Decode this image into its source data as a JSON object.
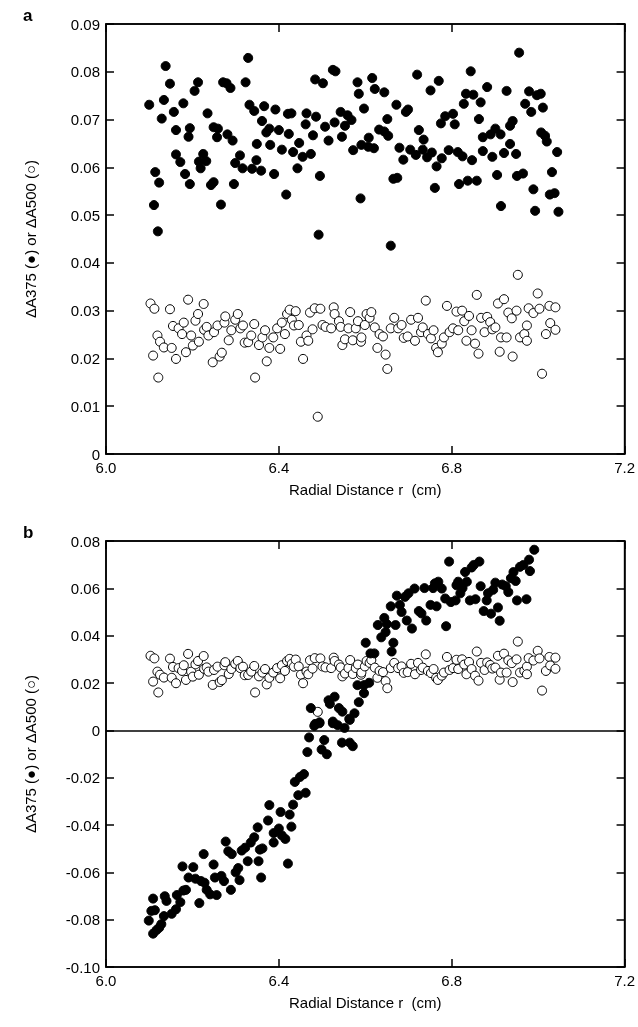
{
  "chart_data": [
    {
      "type": "scatter",
      "title": "a",
      "xlabel": "Radial Distance r  (cm)",
      "ylabel": "ΔA375 (●) or ΔA500 (○)",
      "marker": "circle",
      "xlim": [
        6.0,
        7.2
      ],
      "xticks": [
        {
          "value": 6,
          "label": "6.0"
        },
        6.4,
        6.8,
        7.2
      ],
      "ylim": [
        0,
        0.09
      ],
      "yticks": [
        0,
        0.01,
        0.02,
        0.03,
        0.04,
        0.05,
        0.06,
        0.07,
        0.08,
        0.09
      ],
      "series": [
        {
          "color": "#000000",
          "x": [
            6.1,
            6.111,
            6.114,
            6.123,
            6.129,
            6.134,
            6.138,
            6.148,
            6.157,
            6.162,
            6.162,
            6.172,
            6.179,
            6.183,
            6.194,
            6.191,
            6.194,
            6.205,
            6.213,
            6.215,
            6.219,
            6.225,
            6.232,
            6.235,
            6.243,
            6.249,
            6.249,
            6.257,
            6.259,
            6.266,
            6.271,
            6.279,
            6.281,
            6.288,
            6.293,
            6.296,
            6.299,
            6.31,
            6.316,
            6.323,
            6.329,
            6.332,
            6.338,
            6.343,
            6.348,
            6.349,
            6.359,
            6.361,
            6.366,
            6.371,
            6.38,
            6.378,
            6.389,
            6.392,
            6.4,
            6.407,
            6.417,
            6.421,
            6.423,
            6.429,
            6.433,
            6.443,
            6.447,
            6.455,
            6.464,
            6.462,
            6.474,
            6.479,
            6.484,
            6.486,
            6.495,
            6.502,
            6.507,
            6.515,
            6.525,
            6.531,
            6.529,
            6.543,
            6.546,
            6.553,
            6.559,
            6.568,
            6.572,
            6.582,
            6.585,
            6.589,
            6.597,
            6.591,
            6.608,
            6.607,
            6.616,
            6.62,
            6.622,
            6.632,
            6.644,
            6.644,
            6.651,
            6.653,
            6.665,
            6.672,
            6.674,
            6.679,
            6.688,
            6.694,
            6.699,
            6.704,
            6.717,
            6.72,
            6.724,
            6.735,
            6.733,
            6.743,
            6.754,
            6.751,
            6.761,
            6.765,
            6.77,
            6.775,
            6.777,
            6.785,
            6.793,
            6.803,
            6.807,
            6.814,
            6.817,
            6.825,
            6.828,
            6.833,
            6.837,
            6.844,
            6.847,
            6.85,
            6.858,
            6.863,
            6.867,
            6.872,
            6.872,
            6.882,
            6.89,
            6.894,
            6.901,
            6.905,
            6.913,
            6.914,
            6.921,
            6.927,
            6.935,
            6.935,
            6.941,
            6.949,
            6.951,
            6.956,
            6.965,
            6.97,
            6.979,
            6.984,
            6.989,
            6.993,
            6.997,
            7.006,
            7.007,
            7.011,
            7.016,
            7.02,
            7.027,
            7.032,
            7.038,
            7.044,
            7.047,
            6.12,
            6.492,
            6.659
          ],
          "values": [
            0.0731,
            0.0521,
            0.059,
            0.0568,
            0.0702,
            0.0741,
            0.0812,
            0.0775,
            0.0716,
            0.0678,
            0.0627,
            0.0611,
            0.0734,
            0.0586,
            0.0682,
            0.0664,
            0.0565,
            0.076,
            0.0778,
            0.0612,
            0.0598,
            0.0628,
            0.0613,
            0.0713,
            0.0563,
            0.0569,
            0.0684,
            0.0663,
            0.0681,
            0.0522,
            0.0778,
            0.0776,
            0.0669,
            0.0766,
            0.0656,
            0.0565,
            0.0609,
            0.0625,
            0.0598,
            0.0778,
            0.0829,
            0.0731,
            0.0597,
            0.0718,
            0.0615,
            0.0649,
            0.0593,
            0.0697,
            0.0728,
            0.0673,
            0.0647,
            0.0681,
            0.0586,
            0.0721,
            0.0678,
            0.0637,
            0.0543,
            0.0712,
            0.067,
            0.0713,
            0.0632,
            0.0598,
            0.0651,
            0.0622,
            0.0713,
            0.069,
            0.0628,
            0.0667,
            0.0784,
            0.0706,
            0.0582,
            0.0776,
            0.0685,
            0.0656,
            0.0804,
            0.0801,
            0.0694,
            0.0716,
            0.0664,
            0.0687,
            0.0709,
            0.0699,
            0.0636,
            0.0778,
            0.0754,
            0.0535,
            0.0723,
            0.0647,
            0.0662,
            0.0643,
            0.0787,
            0.064,
            0.0764,
            0.0679,
            0.0757,
            0.0675,
            0.0701,
            0.0666,
            0.0576,
            0.0731,
            0.0578,
            0.0641,
            0.0616,
            0.0716,
            0.0721,
            0.0637,
            0.0626,
            0.0794,
            0.0678,
            0.0658,
            0.0637,
            0.0621,
            0.0631,
            0.0761,
            0.0557,
            0.0602,
            0.0781,
            0.0692,
            0.0619,
            0.0707,
            0.0636,
            0.0712,
            0.069,
            0.0632,
            0.0565,
            0.0623,
            0.0733,
            0.0754,
            0.0572,
            0.0801,
            0.0615,
            0.0752,
            0.0572,
            0.0701,
            0.0736,
            0.0663,
            0.0634,
            0.0768,
            0.0669,
            0.0622,
            0.0681,
            0.0584,
            0.0669,
            0.0519,
            0.063,
            0.076,
            0.0687,
            0.0649,
            0.0697,
            0.0628,
            0.0582,
            0.084,
            0.0587,
            0.0733,
            0.0759,
            0.0716,
            0.0554,
            0.0509,
            0.0751,
            0.0754,
            0.0673,
            0.0725,
            0.0666,
            0.0654,
            0.0543,
            0.059,
            0.0546,
            0.0632,
            0.0507,
            0.0466,
            0.0459,
            0.0436
          ]
        },
        {
          "color": "#ffffff",
          "x": [
            6.103,
            6.109,
            6.112,
            6.119,
            6.121,
            6.125,
            6.134,
            6.148,
            6.152,
            6.155,
            6.162,
            6.168,
            6.176,
            6.18,
            6.185,
            6.19,
            6.197,
            6.201,
            6.207,
            6.213,
            6.215,
            6.226,
            6.227,
            6.233,
            6.237,
            6.247,
            6.25,
            6.258,
            6.263,
            6.268,
            6.274,
            6.276,
            6.284,
            6.29,
            6.299,
            6.305,
            6.311,
            6.317,
            6.321,
            6.329,
            6.336,
            6.343,
            6.345,
            6.354,
            6.362,
            6.368,
            6.372,
            6.378,
            6.387,
            6.396,
            6.403,
            6.407,
            6.414,
            6.419,
            6.425,
            6.43,
            6.435,
            6.439,
            6.446,
            6.451,
            6.456,
            6.464,
            6.468,
            6.472,
            6.478,
            6.483,
            6.49,
            6.496,
            6.501,
            6.508,
            6.521,
            6.527,
            6.529,
            6.539,
            6.543,
            6.547,
            6.553,
            6.561,
            6.565,
            6.571,
            6.578,
            6.583,
            6.59,
            6.591,
            6.599,
            6.603,
            6.61,
            6.614,
            6.622,
            6.628,
            6.633,
            6.641,
            6.647,
            6.651,
            6.659,
            6.667,
            6.676,
            6.684,
            6.689,
            6.698,
            6.706,
            6.715,
            6.722,
            6.729,
            6.733,
            6.74,
            6.745,
            6.752,
            6.758,
            6.764,
            6.768,
            6.777,
            6.782,
            6.789,
            6.795,
            6.803,
            6.811,
            6.815,
            6.824,
            6.829,
            6.834,
            6.84,
            6.846,
            6.854,
            6.858,
            6.862,
            6.868,
            6.876,
            6.882,
            6.889,
            6.894,
            6.901,
            6.907,
            6.911,
            6.914,
            6.921,
            6.927,
            6.931,
            6.939,
            6.941,
            6.95,
            6.953,
            6.958,
            6.968,
            6.974,
            6.974,
            6.978,
            6.989,
            6.999,
            7.003,
            7.009,
            7.018,
            7.026,
            7.028,
            7.04,
            7.04
          ],
          "values": [
            0.0315,
            0.0206,
            0.0304,
            0.0248,
            0.016,
            0.0235,
            0.0223,
            0.0303,
            0.0222,
            0.0268,
            0.0199,
            0.0263,
            0.0251,
            0.0275,
            0.0213,
            0.0323,
            0.0248,
            0.0227,
            0.0279,
            0.0293,
            0.0235,
            0.0314,
            0.026,
            0.0266,
            0.0248,
            0.0192,
            0.0255,
            0.0269,
            0.0204,
            0.0212,
            0.0275,
            0.0288,
            0.0238,
            0.0259,
            0.0281,
            0.0293,
            0.0263,
            0.0269,
            0.0233,
            0.0234,
            0.0248,
            0.0272,
            0.016,
            0.0228,
            0.0244,
            0.0259,
            0.0194,
            0.0222,
            0.0244,
            0.0263,
            0.022,
            0.0275,
            0.0251,
            0.0293,
            0.0302,
            0.0281,
            0.0269,
            0.0299,
            0.027,
            0.0235,
            0.0199,
            0.0248,
            0.0237,
            0.0296,
            0.0261,
            0.0305,
            0.0078,
            0.0304,
            0.027,
            0.0266,
            0.0263,
            0.0307,
            0.0293,
            0.0278,
            0.0266,
            0.0228,
            0.024,
            0.0263,
            0.0297,
            0.0238,
            0.0263,
            0.0278,
            0.0235,
            0.0244,
            0.027,
            0.0293,
            0.0285,
            0.0297,
            0.0265,
            0.0222,
            0.0251,
            0.0246,
            0.0208,
            0.0178,
            0.0263,
            0.0285,
            0.0263,
            0.027,
            0.0243,
            0.0246,
            0.0281,
            0.0237,
            0.0285,
            0.0255,
            0.0265,
            0.0321,
            0.0251,
            0.0242,
            0.0259,
            0.0222,
            0.0213,
            0.0231,
            0.0244,
            0.031,
            0.0255,
            0.0263,
            0.0298,
            0.0259,
            0.03,
            0.0278,
            0.0237,
            0.0289,
            0.0259,
            0.0231,
            0.0333,
            0.021,
            0.0285,
            0.0255,
            0.0287,
            0.0276,
            0.0261,
            0.0265,
            0.0315,
            0.0214,
            0.0244,
            0.0324,
            0.0244,
            0.0296,
            0.0284,
            0.0204,
            0.03,
            0.0375,
            0.0244,
            0.0251,
            0.0269,
            0.0237,
            0.0305,
            0.0295,
            0.0336,
            0.0304,
            0.0168,
            0.0251,
            0.031,
            0.0274,
            0.0307,
            0.026
          ]
        }
      ]
    },
    {
      "type": "scatter",
      "title": "b",
      "xlabel": "Radial Distance r  (cm)",
      "ylabel": "ΔA375 (●) or ΔA500 (○)",
      "marker": "circle",
      "xlim": [
        6.0,
        7.2
      ],
      "xticks": [
        {
          "value": 6,
          "label": "6.0"
        },
        6.4,
        6.8,
        7.2
      ],
      "ylim": [
        -0.1,
        0.08
      ],
      "yticks": [
        {
          "value": -0.1,
          "label": "-0.10"
        },
        -0.08,
        -0.06,
        -0.04,
        -0.02,
        0,
        0.02,
        0.04,
        0.06,
        0.08
      ],
      "ref_lines": [
        {
          "axis": "y",
          "value": 0
        }
      ],
      "series": [
        {
          "color": "#ffffff",
          "x": [
            6.103,
            6.109,
            6.112,
            6.119,
            6.121,
            6.125,
            6.134,
            6.148,
            6.152,
            6.155,
            6.162,
            6.168,
            6.176,
            6.18,
            6.185,
            6.19,
            6.197,
            6.201,
            6.207,
            6.213,
            6.215,
            6.226,
            6.227,
            6.233,
            6.237,
            6.247,
            6.25,
            6.258,
            6.263,
            6.268,
            6.274,
            6.276,
            6.284,
            6.29,
            6.299,
            6.305,
            6.311,
            6.317,
            6.321,
            6.329,
            6.336,
            6.343,
            6.345,
            6.354,
            6.362,
            6.368,
            6.372,
            6.378,
            6.387,
            6.396,
            6.403,
            6.407,
            6.414,
            6.419,
            6.425,
            6.43,
            6.435,
            6.439,
            6.446,
            6.451,
            6.456,
            6.464,
            6.468,
            6.472,
            6.478,
            6.483,
            6.49,
            6.496,
            6.501,
            6.508,
            6.521,
            6.527,
            6.529,
            6.539,
            6.543,
            6.547,
            6.553,
            6.561,
            6.565,
            6.571,
            6.578,
            6.583,
            6.59,
            6.591,
            6.599,
            6.603,
            6.61,
            6.614,
            6.622,
            6.628,
            6.633,
            6.641,
            6.647,
            6.651,
            6.659,
            6.667,
            6.676,
            6.684,
            6.689,
            6.698,
            6.706,
            6.715,
            6.722,
            6.729,
            6.733,
            6.74,
            6.745,
            6.752,
            6.758,
            6.764,
            6.768,
            6.777,
            6.782,
            6.789,
            6.795,
            6.803,
            6.811,
            6.815,
            6.824,
            6.829,
            6.834,
            6.84,
            6.846,
            6.854,
            6.858,
            6.862,
            6.868,
            6.876,
            6.882,
            6.889,
            6.894,
            6.901,
            6.907,
            6.911,
            6.914,
            6.921,
            6.927,
            6.931,
            6.939,
            6.941,
            6.95,
            6.953,
            6.958,
            6.968,
            6.974,
            6.974,
            6.978,
            6.989,
            6.999,
            7.003,
            7.009,
            7.018,
            7.026,
            7.028,
            7.04,
            7.04
          ],
          "values": [
            0.0315,
            0.0206,
            0.0304,
            0.0248,
            0.016,
            0.0235,
            0.0223,
            0.0303,
            0.0222,
            0.0268,
            0.0199,
            0.0263,
            0.0251,
            0.0275,
            0.0213,
            0.0323,
            0.0248,
            0.0227,
            0.0279,
            0.0293,
            0.0235,
            0.0314,
            0.026,
            0.0266,
            0.0248,
            0.0192,
            0.0255,
            0.0269,
            0.0204,
            0.0212,
            0.0275,
            0.0288,
            0.0238,
            0.0259,
            0.0281,
            0.0293,
            0.0263,
            0.0269,
            0.0233,
            0.0234,
            0.0248,
            0.0272,
            0.016,
            0.0228,
            0.0244,
            0.0259,
            0.0194,
            0.0222,
            0.0244,
            0.0263,
            0.022,
            0.0275,
            0.0251,
            0.0293,
            0.0302,
            0.0281,
            0.0269,
            0.0299,
            0.027,
            0.0235,
            0.0199,
            0.0248,
            0.0237,
            0.0296,
            0.0261,
            0.0305,
            0.0078,
            0.0304,
            0.027,
            0.0266,
            0.0263,
            0.0307,
            0.0293,
            0.0278,
            0.0266,
            0.0228,
            0.024,
            0.0263,
            0.0297,
            0.0238,
            0.0263,
            0.0278,
            0.0235,
            0.0244,
            0.027,
            0.0293,
            0.0285,
            0.0297,
            0.0265,
            0.0222,
            0.0251,
            0.0246,
            0.0208,
            0.0178,
            0.0263,
            0.0285,
            0.0263,
            0.027,
            0.0243,
            0.0246,
            0.0281,
            0.0237,
            0.0285,
            0.0255,
            0.0265,
            0.0321,
            0.0251,
            0.0242,
            0.0259,
            0.0222,
            0.0213,
            0.0231,
            0.0244,
            0.031,
            0.0255,
            0.0263,
            0.0298,
            0.0259,
            0.03,
            0.0278,
            0.0237,
            0.0289,
            0.0259,
            0.0231,
            0.0333,
            0.021,
            0.0285,
            0.0255,
            0.0287,
            0.0276,
            0.0261,
            0.0265,
            0.0315,
            0.0214,
            0.0244,
            0.0324,
            0.0244,
            0.0296,
            0.0284,
            0.0204,
            0.03,
            0.0375,
            0.0244,
            0.0251,
            0.0269,
            0.0237,
            0.0305,
            0.0295,
            0.0336,
            0.0304,
            0.0168,
            0.0251,
            0.031,
            0.0274,
            0.0307,
            0.026
          ]
        },
        {
          "color": "#000000",
          "x": [
            6.474,
            6.484,
            6.494,
            6.518,
            6.515,
            6.529,
            6.539,
            6.525,
            6.547,
            6.563,
            6.575,
            6.585,
            6.582,
            6.597,
            6.597,
            6.609,
            6.601,
            6.612,
            6.621,
            6.629,
            6.637,
            6.644,
            6.647,
            6.65,
            6.661,
            6.665,
            6.659,
            6.67,
            6.673,
            6.68,
            6.684,
            6.692,
            6.696,
            6.7,
            6.708,
            6.714,
            6.724,
            6.73,
            6.737,
            6.741,
            6.751,
            6.757,
            6.765,
            6.761,
            6.769,
            6.777,
            6.785,
            6.787,
            6.794,
            6.798,
            6.809,
            6.811,
            6.815,
            6.82,
            6.825,
            6.831,
            6.835,
            6.842,
            6.846,
            6.851,
            6.855,
            6.864,
            6.867,
            6.874,
            6.881,
            6.884,
            6.891,
            6.896,
            6.901,
            6.907,
            6.911,
            6.917,
            6.925,
            6.931,
            6.937,
            6.943,
            6.948,
            6.951,
            6.958,
            6.966,
            6.973,
            6.979,
            6.981,
            6.991,
            6.482,
            6.494,
            6.525,
            6.536,
            6.552,
            6.564,
            6.47,
            6.466,
            6.505,
            6.499,
            6.511,
            6.546,
            6.564,
            6.571,
            6.458,
            6.449,
            6.437,
            6.445,
            6.462,
            6.433,
            6.425,
            6.404,
            6.429,
            6.378,
            6.375,
            6.351,
            6.4,
            6.388,
            6.407,
            6.415,
            6.343,
            6.335,
            6.388,
            6.362,
            6.356,
            6.322,
            6.314,
            6.277,
            6.283,
            6.291,
            6.328,
            6.353,
            6.421,
            6.306,
            6.3,
            6.309,
            6.359,
            6.226,
            6.249,
            6.177,
            6.202,
            6.191,
            6.207,
            6.22,
            6.228,
            6.252,
            6.267,
            6.273,
            6.233,
            6.241,
            6.256,
            6.289,
            6.216,
            6.185,
            6.179,
            6.164,
            6.172,
            6.136,
            6.14,
            6.162,
            6.152,
            6.134,
            6.128,
            6.123,
            6.113,
            6.109,
            6.105,
            6.099,
            6.109,
            6.117
          ],
          "values": [
            0.0094,
            0.0027,
            0.0034,
            0.0112,
            0.0127,
            0.0142,
            0.0094,
            0.0037,
            0.0079,
            0.0049,
            0.0072,
            0.0119,
            0.0191,
            0.0157,
            0.0191,
            0.0201,
            0.037,
            0.0325,
            0.0325,
            0.0445,
            0.0393,
            0.0475,
            0.0415,
            0.0449,
            0.0333,
            0.037,
            0.0524,
            0.0445,
            0.0569,
            0.053,
            0.05,
            0.0564,
            0.0464,
            0.0579,
            0.043,
            0.0599,
            0.0504,
            0.0494,
            0.0601,
            0.0464,
            0.053,
            0.0601,
            0.0524,
            0.0621,
            0.0628,
            0.0599,
            0.0557,
            0.044,
            0.0713,
            0.0542,
            0.0549,
            0.0613,
            0.0628,
            0.0579,
            0.0601,
            0.0669,
            0.0628,
            0.0549,
            0.0688,
            0.0699,
            0.0554,
            0.0713,
            0.0609,
            0.0504,
            0.0549,
            0.0579,
            0.0493,
            0.0594,
            0.0624,
            0.0519,
            0.0463,
            0.0616,
            0.0609,
            0.0584,
            0.0643,
            0.0669,
            0.0631,
            0.0549,
            0.0691,
            0.0699,
            0.0554,
            0.0721,
            0.0673,
            0.0763,
            0.0019,
            0.003,
            0.003,
            0.0022,
            0.001,
            0.0044,
            -0.003,
            -0.0092,
            -0.0041,
            -0.0081,
            -0.0101,
            -0.0052,
            -0.0052,
            -0.0067,
            -0.0185,
            -0.0197,
            -0.0218,
            -0.0274,
            -0.0264,
            -0.0314,
            -0.0356,
            -0.0345,
            -0.0407,
            -0.0316,
            -0.0381,
            -0.041,
            -0.0415,
            -0.0434,
            -0.0444,
            -0.0459,
            -0.0452,
            -0.0474,
            -0.0474,
            -0.0499,
            -0.0504,
            -0.0496,
            -0.0508,
            -0.047,
            -0.0511,
            -0.0523,
            -0.0553,
            -0.0553,
            -0.0563,
            -0.0582,
            -0.06,
            -0.0633,
            -0.0622,
            -0.0523,
            -0.0567,
            -0.0575,
            -0.0578,
            -0.0622,
            -0.0627,
            -0.0637,
            -0.0644,
            -0.0622,
            -0.0615,
            -0.0637,
            -0.0674,
            -0.0693,
            -0.0696,
            -0.0674,
            -0.073,
            -0.0674,
            -0.0677,
            -0.0696,
            -0.0726,
            -0.0701,
            -0.0721,
            -0.0756,
            -0.0775,
            -0.0785,
            -0.0819,
            -0.0834,
            -0.076,
            -0.0711,
            -0.0763,
            -0.0804,
            -0.0859,
            -0.0844
          ]
        }
      ]
    }
  ]
}
